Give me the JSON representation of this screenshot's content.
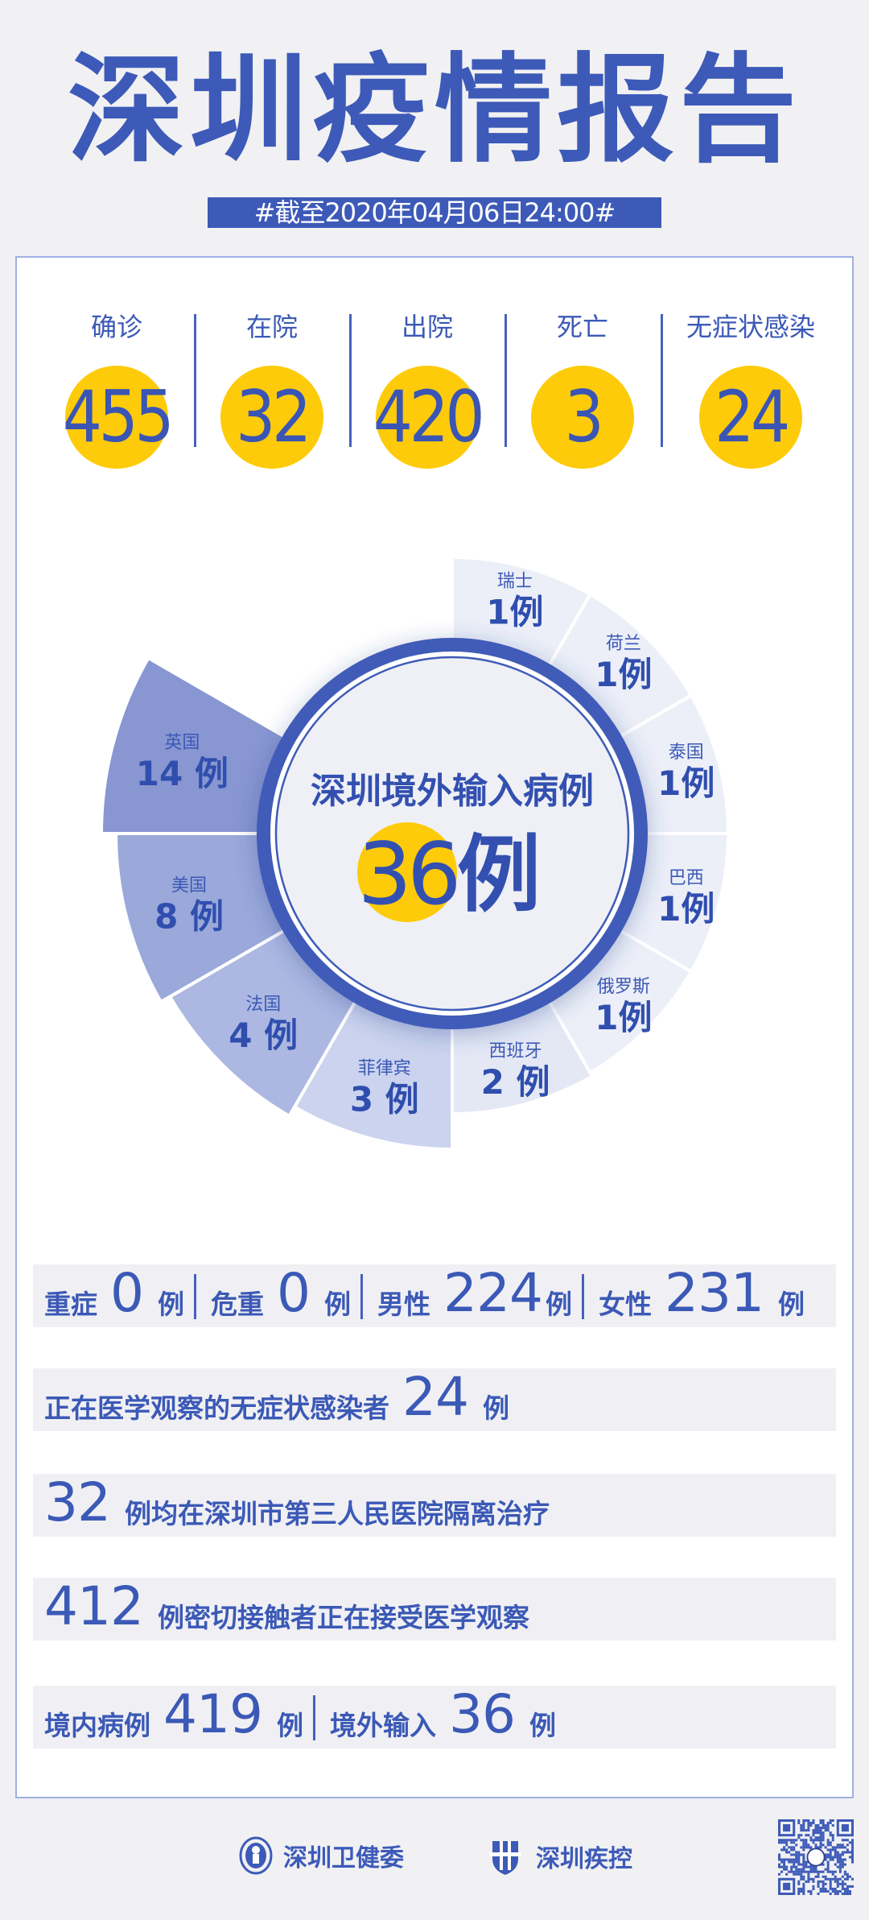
{
  "title": "深圳疫情报告",
  "date_banner": "#截至2020年04月06日24:00#",
  "stats": [
    {
      "label": "确诊",
      "value": "455"
    },
    {
      "label": "在院",
      "value": "32"
    },
    {
      "label": "出院",
      "value": "420"
    },
    {
      "label": "死亡",
      "value": "3"
    },
    {
      "label": "无症状感染",
      "value": "24"
    }
  ],
  "colors": {
    "primary": "#3d5ab8",
    "highlight": "#fecb0a",
    "row_bg": "#f0f0f4"
  },
  "chart_data": {
    "type": "pie",
    "variant": "rose",
    "title": "深圳境外输入病例",
    "total": "36",
    "unit": "例",
    "categories": [
      "瑞士",
      "荷兰",
      "泰国",
      "巴西",
      "俄罗斯",
      "西班牙",
      "菲律宾",
      "法国",
      "美国",
      "英国"
    ],
    "values": [
      1,
      1,
      1,
      1,
      1,
      2,
      3,
      4,
      8,
      14
    ],
    "colors": [
      "#eceff8",
      "#eceff8",
      "#eceff8",
      "#eceff8",
      "#eceff8",
      "#e4e8f5",
      "#cbd3ee",
      "#acb8e2",
      "#9aa8da",
      "#8896d1"
    ]
  },
  "rows": {
    "severity": [
      {
        "label": "重症",
        "value": "0",
        "unit": "例"
      },
      {
        "label": "危重",
        "value": "0",
        "unit": "例"
      },
      {
        "label": "男性",
        "value": "224",
        "unit": "例"
      },
      {
        "label": "女性",
        "value": "231",
        "unit": "例"
      }
    ],
    "asym": {
      "text": "正在医学观察的无症状感染者",
      "value": "24",
      "unit": "例"
    },
    "hospital": {
      "value": "32",
      "text": "例均在深圳市第三人民医院隔离治疗"
    },
    "contacts": {
      "value": "412",
      "text": "例密切接触者正在接受医学观察"
    },
    "origin": [
      {
        "label": "境内病例",
        "value": "419",
        "unit": "例"
      },
      {
        "label": "境外输入",
        "value": "36",
        "unit": "例"
      }
    ]
  },
  "footer": {
    "org1": "深圳卫健委",
    "org2": "深圳疾控"
  }
}
